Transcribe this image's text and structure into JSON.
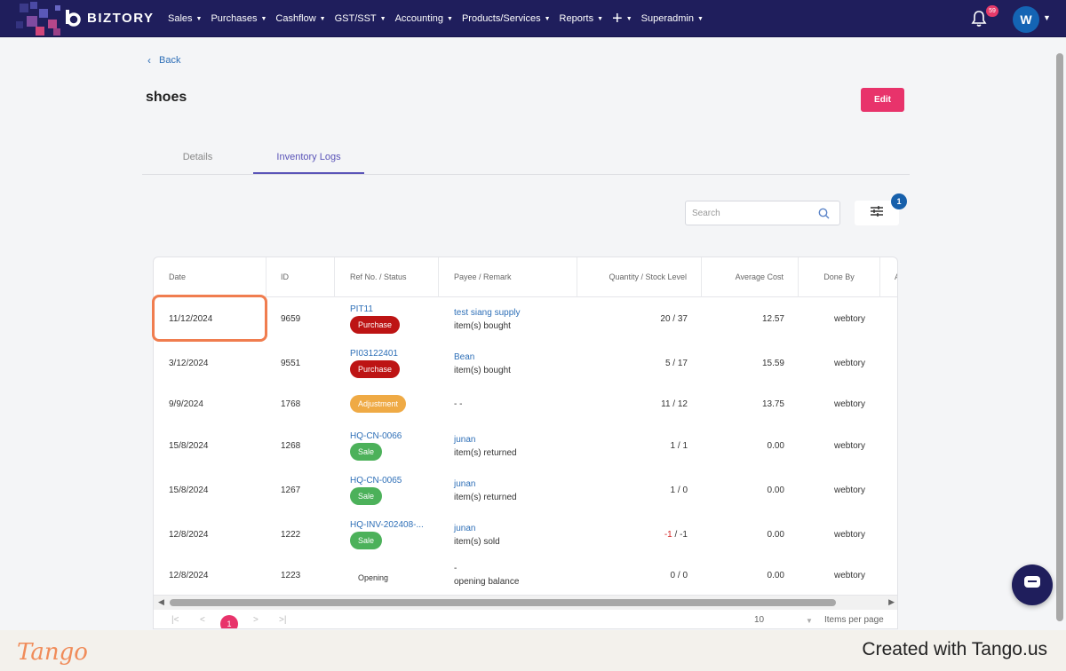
{
  "brand": {
    "name": "BIZTORY"
  },
  "nav": {
    "items": [
      {
        "label": "Sales"
      },
      {
        "label": "Purchases"
      },
      {
        "label": "Cashflow"
      },
      {
        "label": "GST/SST"
      },
      {
        "label": "Accounting"
      },
      {
        "label": "Products/Services"
      },
      {
        "label": "Reports"
      },
      {
        "label": "+"
      },
      {
        "label": "Superadmin"
      }
    ],
    "notification_count": "59",
    "user_initial": "W"
  },
  "page": {
    "back_label": "Back",
    "title": "shoes",
    "edit_label": "Edit"
  },
  "tabs": [
    {
      "label": "Details",
      "active": false
    },
    {
      "label": "Inventory Logs",
      "active": true
    }
  ],
  "search": {
    "placeholder": "Search"
  },
  "filter": {
    "count": "1"
  },
  "table": {
    "headers": [
      "Date",
      "ID",
      "Ref No. / Status",
      "Payee / Remark",
      "Quantity / Stock Level",
      "Average Cost",
      "Done By",
      "A"
    ],
    "rows": [
      {
        "date": "11/12/2024",
        "id": "9659",
        "ref": "PIT11",
        "status": "Purchase",
        "status_type": "purchase",
        "payee": "test siang supply",
        "remark": "item(s) bought",
        "qty": "20",
        "stock": "37",
        "avg_cost": "12.57",
        "done_by": "webtory"
      },
      {
        "date": "3/12/2024",
        "id": "9551",
        "ref": "PI03122401",
        "status": "Purchase",
        "status_type": "purchase",
        "payee": "Bean",
        "remark": "item(s) bought",
        "qty": "5",
        "stock": "17",
        "avg_cost": "15.59",
        "done_by": "webtory"
      },
      {
        "date": "9/9/2024",
        "id": "1768",
        "ref": "",
        "status": "Adjustment",
        "status_type": "adjustment",
        "payee": "",
        "remark": "- -",
        "qty": "11",
        "stock": "12",
        "avg_cost": "13.75",
        "done_by": "webtory"
      },
      {
        "date": "15/8/2024",
        "id": "1268",
        "ref": "HQ-CN-0066",
        "status": "Sale",
        "status_type": "sale",
        "payee": "junan",
        "remark": "item(s) returned",
        "qty": "1",
        "stock": "1",
        "avg_cost": "0.00",
        "done_by": "webtory"
      },
      {
        "date": "15/8/2024",
        "id": "1267",
        "ref": "HQ-CN-0065",
        "status": "Sale",
        "status_type": "sale",
        "payee": "junan",
        "remark": "item(s) returned",
        "qty": "1",
        "stock": "0",
        "avg_cost": "0.00",
        "done_by": "webtory"
      },
      {
        "date": "12/8/2024",
        "id": "1222",
        "ref": "HQ-INV-202408-...",
        "status": "Sale",
        "status_type": "sale",
        "payee": "junan",
        "remark": "item(s) sold",
        "qty": "-1",
        "stock": "-1",
        "avg_cost": "0.00",
        "done_by": "webtory"
      },
      {
        "date": "12/8/2024",
        "id": "1223",
        "ref": "",
        "status": "Opening",
        "status_type": "plain",
        "payee": "-",
        "remark": "opening balance",
        "qty": "0",
        "stock": "0",
        "avg_cost": "0.00",
        "done_by": "webtory"
      }
    ]
  },
  "pagination": {
    "current_page": "1",
    "per_page": "10",
    "per_page_label": "Items per page"
  },
  "footer": {
    "logo": "Tango",
    "credit": "Created with Tango.us"
  },
  "colors": {
    "nav_bg": "#1f1e5c",
    "accent": "#e8336b",
    "tab_active": "#5a54b8",
    "link": "#2e6fb7",
    "purchase": "#bd1414",
    "adjustment": "#efaa45",
    "sale": "#4cb15a",
    "highlight": "#f07d4f"
  }
}
